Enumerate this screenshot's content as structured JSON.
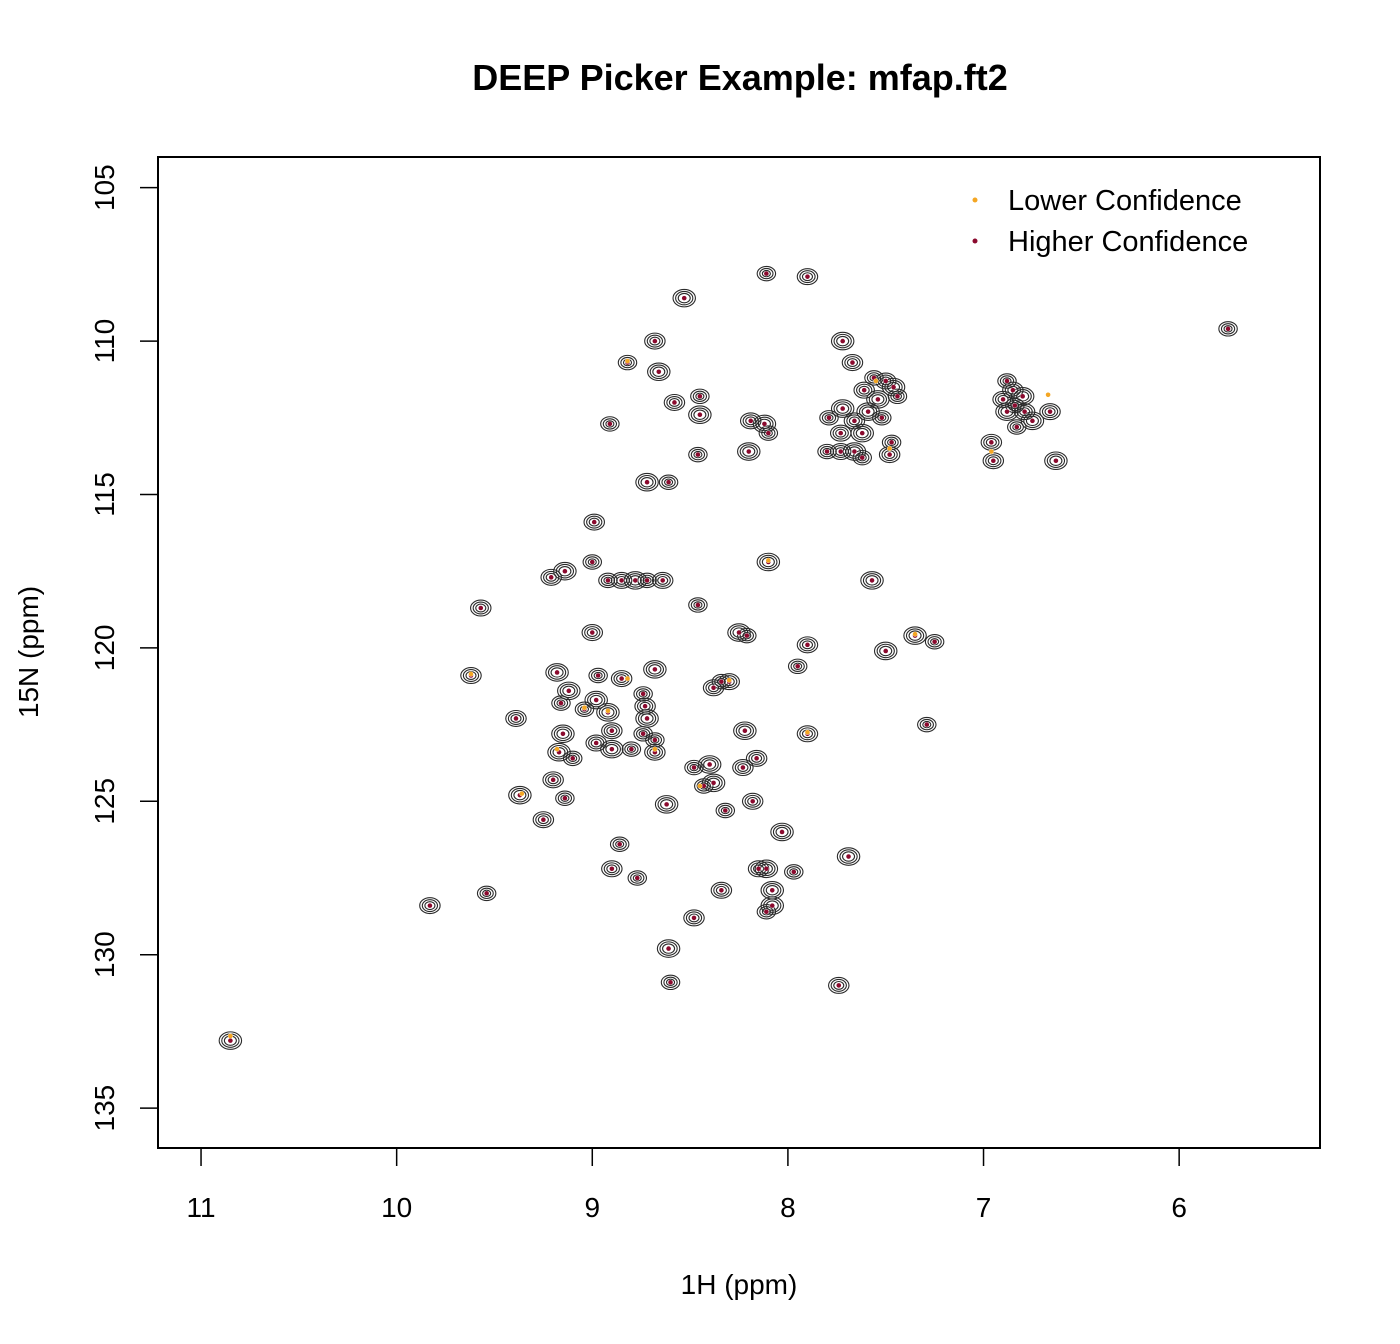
{
  "title": "DEEP Picker Example: mfap.ft2",
  "colors": {
    "lower": "#f4a623",
    "higher": "#8b0a2e",
    "contour": "#2b2b2b",
    "frame": "#000000"
  },
  "chart_data": {
    "type": "scatter",
    "title": "DEEP Picker Example: mfap.ft2",
    "xlabel": "1H (ppm)",
    "ylabel": "15N (ppm)",
    "xlim": [
      11.22,
      5.28
    ],
    "ylim": [
      104.0,
      136.3
    ],
    "x_reversed": true,
    "y_reversed": true,
    "x_ticks": [
      11,
      10,
      9,
      8,
      7,
      6
    ],
    "y_ticks": [
      105,
      110,
      115,
      120,
      125,
      130,
      135
    ],
    "legend": {
      "position": "top-right",
      "entries": [
        {
          "label": "Lower Confidence",
          "color": "#f4a623"
        },
        {
          "label": "Higher Confidence",
          "color": "#8b0a2e"
        }
      ]
    },
    "series": [
      {
        "name": "Higher Confidence",
        "color": "#8b0a2e",
        "points": [
          [
            8.11,
            107.8
          ],
          [
            7.9,
            107.9
          ],
          [
            8.53,
            108.6
          ],
          [
            5.75,
            109.6
          ],
          [
            8.68,
            110
          ],
          [
            7.72,
            110
          ],
          [
            8.82,
            110.7
          ],
          [
            7.67,
            110.7
          ],
          [
            8.66,
            111
          ],
          [
            7.56,
            111.2
          ],
          [
            7.5,
            111.3
          ],
          [
            7.46,
            111.5
          ],
          [
            6.88,
            111.3
          ],
          [
            6.85,
            111.6
          ],
          [
            6.8,
            111.8
          ],
          [
            8.45,
            111.8
          ],
          [
            7.61,
            111.6
          ],
          [
            7.54,
            111.9
          ],
          [
            7.44,
            111.8
          ],
          [
            8.58,
            112
          ],
          [
            7.72,
            112.2
          ],
          [
            7.79,
            112.5
          ],
          [
            7.66,
            112.6
          ],
          [
            7.59,
            112.3
          ],
          [
            7.52,
            112.5
          ],
          [
            6.9,
            111.9
          ],
          [
            6.88,
            112.3
          ],
          [
            6.84,
            112.1
          ],
          [
            6.79,
            112.3
          ],
          [
            6.75,
            112.6
          ],
          [
            6.83,
            112.8
          ],
          [
            6.66,
            112.3
          ],
          [
            8.45,
            112.4
          ],
          [
            8.91,
            112.7
          ],
          [
            8.19,
            112.6
          ],
          [
            8.12,
            112.7
          ],
          [
            8.1,
            113
          ],
          [
            7.73,
            113
          ],
          [
            7.62,
            113
          ],
          [
            7.47,
            113.3
          ],
          [
            6.96,
            113.3
          ],
          [
            8.2,
            113.6
          ],
          [
            7.8,
            113.6
          ],
          [
            7.73,
            113.6
          ],
          [
            7.66,
            113.6
          ],
          [
            7.62,
            113.8
          ],
          [
            6.95,
            113.9
          ],
          [
            6.63,
            113.9
          ],
          [
            8.46,
            113.7
          ],
          [
            7.48,
            113.7
          ],
          [
            8.72,
            114.6
          ],
          [
            8.61,
            114.6
          ],
          [
            8.99,
            115.9
          ],
          [
            8.1,
            117.2
          ],
          [
            9.0,
            117.2
          ],
          [
            9.21,
            117.7
          ],
          [
            9.14,
            117.5
          ],
          [
            8.92,
            117.8
          ],
          [
            8.85,
            117.8
          ],
          [
            8.78,
            117.8
          ],
          [
            8.72,
            117.8
          ],
          [
            8.64,
            117.8
          ],
          [
            7.57,
            117.8
          ],
          [
            8.46,
            118.6
          ],
          [
            9.57,
            118.7
          ],
          [
            8.25,
            119.5
          ],
          [
            8.21,
            119.6
          ],
          [
            9.0,
            119.5
          ],
          [
            7.35,
            119.6
          ],
          [
            7.25,
            119.8
          ],
          [
            7.9,
            119.9
          ],
          [
            7.5,
            120.1
          ],
          [
            7.95,
            120.6
          ],
          [
            9.62,
            120.9
          ],
          [
            9.18,
            120.8
          ],
          [
            8.97,
            120.9
          ],
          [
            8.85,
            121
          ],
          [
            8.68,
            120.7
          ],
          [
            8.34,
            121.1
          ],
          [
            8.3,
            121.1
          ],
          [
            9.12,
            121.4
          ],
          [
            8.74,
            121.5
          ],
          [
            8.38,
            121.3
          ],
          [
            8.98,
            121.7
          ],
          [
            9.16,
            121.8
          ],
          [
            8.73,
            121.9
          ],
          [
            8.92,
            122.1
          ],
          [
            9.04,
            122
          ],
          [
            9.39,
            122.3
          ],
          [
            8.72,
            122.3
          ],
          [
            7.29,
            122.5
          ],
          [
            8.9,
            122.7
          ],
          [
            8.22,
            122.7
          ],
          [
            8.74,
            122.8
          ],
          [
            7.9,
            122.8
          ],
          [
            9.15,
            122.8
          ],
          [
            8.68,
            123
          ],
          [
            8.98,
            123.1
          ],
          [
            8.9,
            123.3
          ],
          [
            8.8,
            123.3
          ],
          [
            8.68,
            123.4
          ],
          [
            9.17,
            123.4
          ],
          [
            9.1,
            123.6
          ],
          [
            8.16,
            123.6
          ],
          [
            8.4,
            123.8
          ],
          [
            8.48,
            123.9
          ],
          [
            8.23,
            123.9
          ],
          [
            8.38,
            124.4
          ],
          [
            8.43,
            124.5
          ],
          [
            9.2,
            124.3
          ],
          [
            9.37,
            124.8
          ],
          [
            9.14,
            124.9
          ],
          [
            8.18,
            125
          ],
          [
            8.62,
            125.1
          ],
          [
            8.32,
            125.3
          ],
          [
            9.25,
            125.6
          ],
          [
            8.03,
            126
          ],
          [
            8.86,
            126.4
          ],
          [
            8.15,
            127.2
          ],
          [
            8.11,
            127.2
          ],
          [
            7.97,
            127.3
          ],
          [
            8.9,
            127.2
          ],
          [
            7.69,
            126.8
          ],
          [
            8.77,
            127.5
          ],
          [
            8.34,
            127.9
          ],
          [
            8.08,
            127.9
          ],
          [
            9.54,
            128
          ],
          [
            9.83,
            128.4
          ],
          [
            8.08,
            128.4
          ],
          [
            8.11,
            128.6
          ],
          [
            8.48,
            128.8
          ],
          [
            8.61,
            129.8
          ],
          [
            8.6,
            130.9
          ],
          [
            7.74,
            131
          ],
          [
            10.85,
            132.8
          ]
        ]
      },
      {
        "name": "Lower Confidence",
        "color": "#f4a623",
        "points": [
          [
            8.82,
            110.65
          ],
          [
            6.67,
            111.75
          ],
          [
            7.55,
            111.3
          ],
          [
            6.96,
            113.6
          ],
          [
            8.1,
            117.15
          ],
          [
            9.62,
            120.85
          ],
          [
            8.3,
            121.05
          ],
          [
            9.04,
            121.95
          ],
          [
            7.9,
            122.75
          ],
          [
            9.18,
            123.3
          ],
          [
            8.45,
            124.5
          ],
          [
            9.36,
            124.75
          ],
          [
            8.92,
            122.05
          ],
          [
            7.35,
            119.55
          ],
          [
            10.85,
            132.65
          ],
          [
            7.48,
            113.5
          ],
          [
            8.68,
            123.3
          ],
          [
            8.82,
            121
          ]
        ]
      }
    ]
  }
}
